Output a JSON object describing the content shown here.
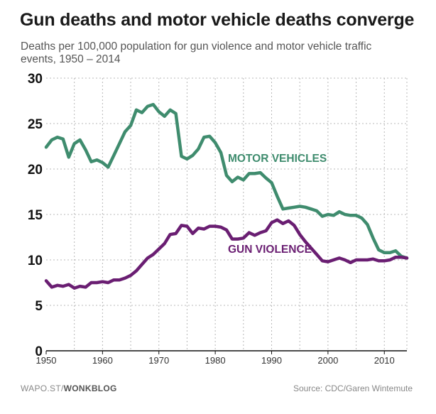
{
  "header": {
    "title": "Gun deaths and motor vehicle deaths converge",
    "subtitle": "Deaths per 100,000 population for gun violence and motor vehicle traffic events, 1950 – 2014"
  },
  "footer": {
    "credit_prefix": "WAPO.ST/",
    "credit_brand": "WONKBLOG",
    "source": "Source: CDC/Garen Wintemute"
  },
  "chart_data": {
    "type": "line",
    "title": "Gun deaths and motor vehicle deaths converge",
    "xlabel": "",
    "ylabel": "",
    "xlim": [
      1950,
      2014
    ],
    "ylim": [
      0,
      30
    ],
    "x_ticks": [
      1950,
      1960,
      1970,
      1980,
      1990,
      2000,
      2010
    ],
    "y_ticks": [
      0,
      5,
      10,
      15,
      20,
      25,
      30
    ],
    "grid": true,
    "x": [
      1950,
      1951,
      1952,
      1953,
      1954,
      1955,
      1956,
      1957,
      1958,
      1959,
      1960,
      1961,
      1962,
      1963,
      1964,
      1965,
      1966,
      1967,
      1968,
      1969,
      1970,
      1971,
      1972,
      1973,
      1974,
      1975,
      1976,
      1977,
      1978,
      1979,
      1980,
      1981,
      1982,
      1983,
      1984,
      1985,
      1986,
      1987,
      1988,
      1989,
      1990,
      1991,
      1992,
      1993,
      1994,
      1995,
      1996,
      1997,
      1998,
      1999,
      2000,
      2001,
      2002,
      2003,
      2004,
      2005,
      2006,
      2007,
      2008,
      2009,
      2010,
      2011,
      2012,
      2013,
      2014
    ],
    "series": [
      {
        "name": "MOTOR VEHICLES",
        "color": "#3f8c6e",
        "values": [
          22.4,
          23.2,
          23.5,
          23.3,
          21.3,
          22.8,
          23.2,
          22.1,
          20.8,
          21.0,
          20.7,
          20.2,
          21.5,
          22.8,
          24.1,
          24.8,
          26.5,
          26.2,
          26.9,
          27.1,
          26.3,
          25.8,
          26.5,
          26.1,
          21.4,
          21.1,
          21.5,
          22.2,
          23.5,
          23.6,
          22.9,
          21.8,
          19.3,
          18.6,
          19.1,
          18.8,
          19.5,
          19.5,
          19.6,
          19.0,
          18.5,
          17.0,
          15.6,
          15.7,
          15.8,
          15.9,
          15.8,
          15.6,
          15.4,
          14.8,
          15.0,
          14.9,
          15.3,
          15.0,
          14.9,
          14.9,
          14.6,
          13.9,
          12.4,
          11.1,
          10.8,
          10.8,
          11.0,
          10.4,
          10.2
        ]
      },
      {
        "name": "GUN VIOLENCE",
        "color": "#6a1e72",
        "values": [
          7.7,
          7.0,
          7.2,
          7.1,
          7.3,
          6.9,
          7.1,
          7.0,
          7.5,
          7.5,
          7.6,
          7.5,
          7.8,
          7.8,
          8.0,
          8.3,
          8.8,
          9.5,
          10.2,
          10.6,
          11.2,
          11.8,
          12.8,
          12.9,
          13.8,
          13.7,
          12.9,
          13.5,
          13.4,
          13.7,
          13.7,
          13.6,
          13.3,
          12.3,
          12.3,
          12.4,
          13.0,
          12.7,
          13.0,
          13.2,
          14.1,
          14.4,
          14.0,
          14.3,
          13.8,
          12.8,
          12.0,
          11.3,
          10.6,
          9.9,
          9.8,
          10.0,
          10.2,
          10.0,
          9.7,
          10.0,
          10.0,
          10.0,
          10.1,
          9.9,
          9.9,
          10.0,
          10.3,
          10.3,
          10.2
        ]
      }
    ],
    "annotations": [
      {
        "text": "MOTOR VEHICLES",
        "x": 1982,
        "y": 20.8
      },
      {
        "text": "GUN VIOLENCE",
        "x": 1982,
        "y": 10.8
      }
    ]
  }
}
